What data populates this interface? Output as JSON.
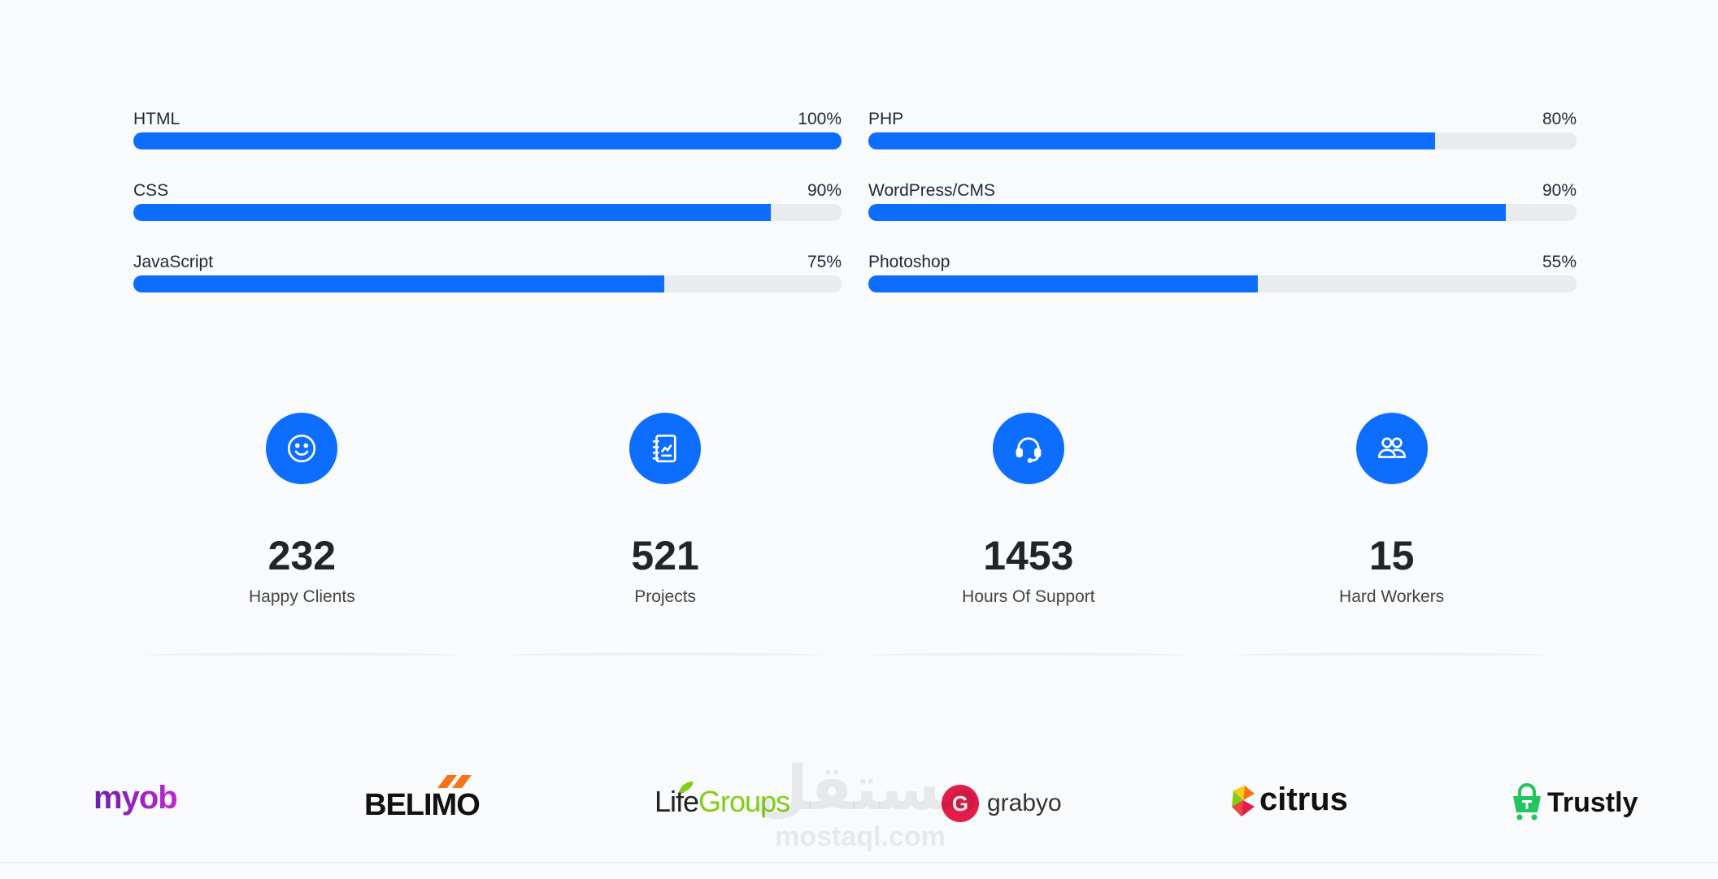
{
  "skills": {
    "left": [
      {
        "name": "HTML",
        "percent_label": "100%",
        "value": 100
      },
      {
        "name": "CSS",
        "percent_label": "90%",
        "value": 90
      },
      {
        "name": "JavaScript",
        "percent_label": "75%",
        "value": 75
      }
    ],
    "right": [
      {
        "name": "PHP",
        "percent_label": "80%",
        "value": 80
      },
      {
        "name": "WordPress/CMS",
        "percent_label": "90%",
        "value": 90
      },
      {
        "name": "Photoshop",
        "percent_label": "55%",
        "value": 55
      }
    ]
  },
  "stats": [
    {
      "icon": "smile-icon",
      "value": "232",
      "label": "Happy Clients"
    },
    {
      "icon": "journal-icon",
      "value": "521",
      "label": "Projects"
    },
    {
      "icon": "headset-icon",
      "value": "1453",
      "label": "Hours Of Support"
    },
    {
      "icon": "people-icon",
      "value": "15",
      "label": "Hard Workers"
    }
  ],
  "clients": {
    "myob": "myob",
    "belimo": "BELIMO",
    "lifegroups_a": "Life",
    "lifegroups_b": "Groups",
    "grabyo_mark": "G",
    "grabyo": "grabyo",
    "citrus": "citrus",
    "trustly": "Trustly"
  },
  "watermark": {
    "arabic": "مستقل",
    "latin": "mostaql.com"
  },
  "colors": {
    "accent": "#0d6efd",
    "track": "#e9ecef",
    "background": "#f8fafc"
  }
}
